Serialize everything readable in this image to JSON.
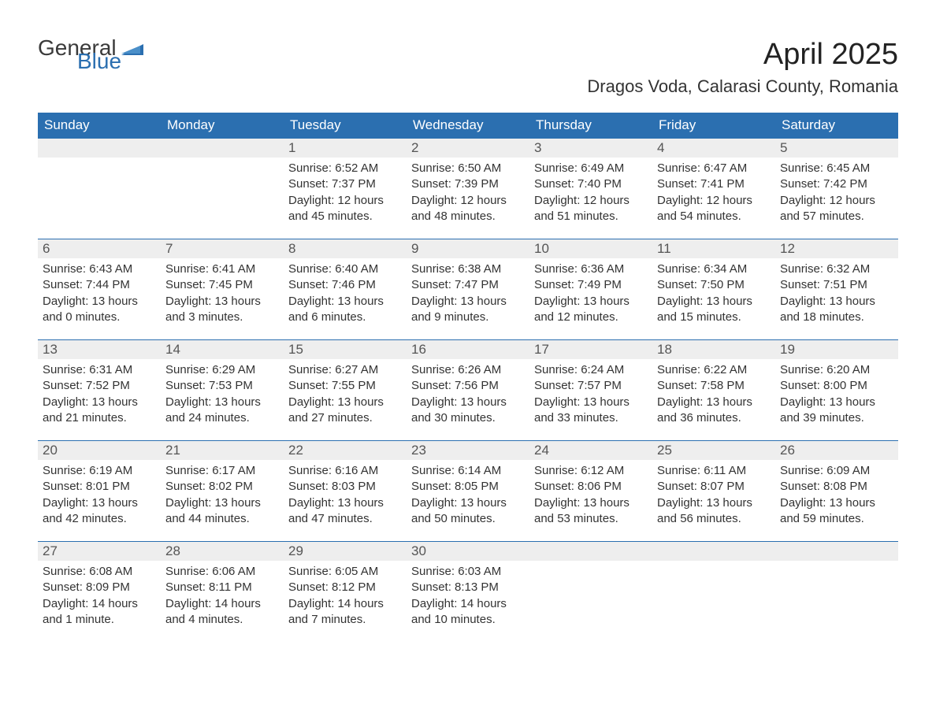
{
  "brand": {
    "line1": "General",
    "line2": "Blue",
    "flag_color": "#2b6fb0",
    "text_gray": "#3a3a3a"
  },
  "title": "April 2025",
  "location": "Dragos Voda, Calarasi County, Romania",
  "colors": {
    "header_bg": "#2b6fb0",
    "header_fg": "#ffffff",
    "day_strip_bg": "#eeeeee",
    "body_text": "#333333",
    "page_bg": "#ffffff"
  },
  "weekdays": [
    "Sunday",
    "Monday",
    "Tuesday",
    "Wednesday",
    "Thursday",
    "Friday",
    "Saturday"
  ],
  "weeks": [
    [
      null,
      null,
      {
        "n": "1",
        "sunrise": "Sunrise: 6:52 AM",
        "sunset": "Sunset: 7:37 PM",
        "daylight": "Daylight: 12 hours and 45 minutes."
      },
      {
        "n": "2",
        "sunrise": "Sunrise: 6:50 AM",
        "sunset": "Sunset: 7:39 PM",
        "daylight": "Daylight: 12 hours and 48 minutes."
      },
      {
        "n": "3",
        "sunrise": "Sunrise: 6:49 AM",
        "sunset": "Sunset: 7:40 PM",
        "daylight": "Daylight: 12 hours and 51 minutes."
      },
      {
        "n": "4",
        "sunrise": "Sunrise: 6:47 AM",
        "sunset": "Sunset: 7:41 PM",
        "daylight": "Daylight: 12 hours and 54 minutes."
      },
      {
        "n": "5",
        "sunrise": "Sunrise: 6:45 AM",
        "sunset": "Sunset: 7:42 PM",
        "daylight": "Daylight: 12 hours and 57 minutes."
      }
    ],
    [
      {
        "n": "6",
        "sunrise": "Sunrise: 6:43 AM",
        "sunset": "Sunset: 7:44 PM",
        "daylight": "Daylight: 13 hours and 0 minutes."
      },
      {
        "n": "7",
        "sunrise": "Sunrise: 6:41 AM",
        "sunset": "Sunset: 7:45 PM",
        "daylight": "Daylight: 13 hours and 3 minutes."
      },
      {
        "n": "8",
        "sunrise": "Sunrise: 6:40 AM",
        "sunset": "Sunset: 7:46 PM",
        "daylight": "Daylight: 13 hours and 6 minutes."
      },
      {
        "n": "9",
        "sunrise": "Sunrise: 6:38 AM",
        "sunset": "Sunset: 7:47 PM",
        "daylight": "Daylight: 13 hours and 9 minutes."
      },
      {
        "n": "10",
        "sunrise": "Sunrise: 6:36 AM",
        "sunset": "Sunset: 7:49 PM",
        "daylight": "Daylight: 13 hours and 12 minutes."
      },
      {
        "n": "11",
        "sunrise": "Sunrise: 6:34 AM",
        "sunset": "Sunset: 7:50 PM",
        "daylight": "Daylight: 13 hours and 15 minutes."
      },
      {
        "n": "12",
        "sunrise": "Sunrise: 6:32 AM",
        "sunset": "Sunset: 7:51 PM",
        "daylight": "Daylight: 13 hours and 18 minutes."
      }
    ],
    [
      {
        "n": "13",
        "sunrise": "Sunrise: 6:31 AM",
        "sunset": "Sunset: 7:52 PM",
        "daylight": "Daylight: 13 hours and 21 minutes."
      },
      {
        "n": "14",
        "sunrise": "Sunrise: 6:29 AM",
        "sunset": "Sunset: 7:53 PM",
        "daylight": "Daylight: 13 hours and 24 minutes."
      },
      {
        "n": "15",
        "sunrise": "Sunrise: 6:27 AM",
        "sunset": "Sunset: 7:55 PM",
        "daylight": "Daylight: 13 hours and 27 minutes."
      },
      {
        "n": "16",
        "sunrise": "Sunrise: 6:26 AM",
        "sunset": "Sunset: 7:56 PM",
        "daylight": "Daylight: 13 hours and 30 minutes."
      },
      {
        "n": "17",
        "sunrise": "Sunrise: 6:24 AM",
        "sunset": "Sunset: 7:57 PM",
        "daylight": "Daylight: 13 hours and 33 minutes."
      },
      {
        "n": "18",
        "sunrise": "Sunrise: 6:22 AM",
        "sunset": "Sunset: 7:58 PM",
        "daylight": "Daylight: 13 hours and 36 minutes."
      },
      {
        "n": "19",
        "sunrise": "Sunrise: 6:20 AM",
        "sunset": "Sunset: 8:00 PM",
        "daylight": "Daylight: 13 hours and 39 minutes."
      }
    ],
    [
      {
        "n": "20",
        "sunrise": "Sunrise: 6:19 AM",
        "sunset": "Sunset: 8:01 PM",
        "daylight": "Daylight: 13 hours and 42 minutes."
      },
      {
        "n": "21",
        "sunrise": "Sunrise: 6:17 AM",
        "sunset": "Sunset: 8:02 PM",
        "daylight": "Daylight: 13 hours and 44 minutes."
      },
      {
        "n": "22",
        "sunrise": "Sunrise: 6:16 AM",
        "sunset": "Sunset: 8:03 PM",
        "daylight": "Daylight: 13 hours and 47 minutes."
      },
      {
        "n": "23",
        "sunrise": "Sunrise: 6:14 AM",
        "sunset": "Sunset: 8:05 PM",
        "daylight": "Daylight: 13 hours and 50 minutes."
      },
      {
        "n": "24",
        "sunrise": "Sunrise: 6:12 AM",
        "sunset": "Sunset: 8:06 PM",
        "daylight": "Daylight: 13 hours and 53 minutes."
      },
      {
        "n": "25",
        "sunrise": "Sunrise: 6:11 AM",
        "sunset": "Sunset: 8:07 PM",
        "daylight": "Daylight: 13 hours and 56 minutes."
      },
      {
        "n": "26",
        "sunrise": "Sunrise: 6:09 AM",
        "sunset": "Sunset: 8:08 PM",
        "daylight": "Daylight: 13 hours and 59 minutes."
      }
    ],
    [
      {
        "n": "27",
        "sunrise": "Sunrise: 6:08 AM",
        "sunset": "Sunset: 8:09 PM",
        "daylight": "Daylight: 14 hours and 1 minute."
      },
      {
        "n": "28",
        "sunrise": "Sunrise: 6:06 AM",
        "sunset": "Sunset: 8:11 PM",
        "daylight": "Daylight: 14 hours and 4 minutes."
      },
      {
        "n": "29",
        "sunrise": "Sunrise: 6:05 AM",
        "sunset": "Sunset: 8:12 PM",
        "daylight": "Daylight: 14 hours and 7 minutes."
      },
      {
        "n": "30",
        "sunrise": "Sunrise: 6:03 AM",
        "sunset": "Sunset: 8:13 PM",
        "daylight": "Daylight: 14 hours and 10 minutes."
      },
      null,
      null,
      null
    ]
  ]
}
